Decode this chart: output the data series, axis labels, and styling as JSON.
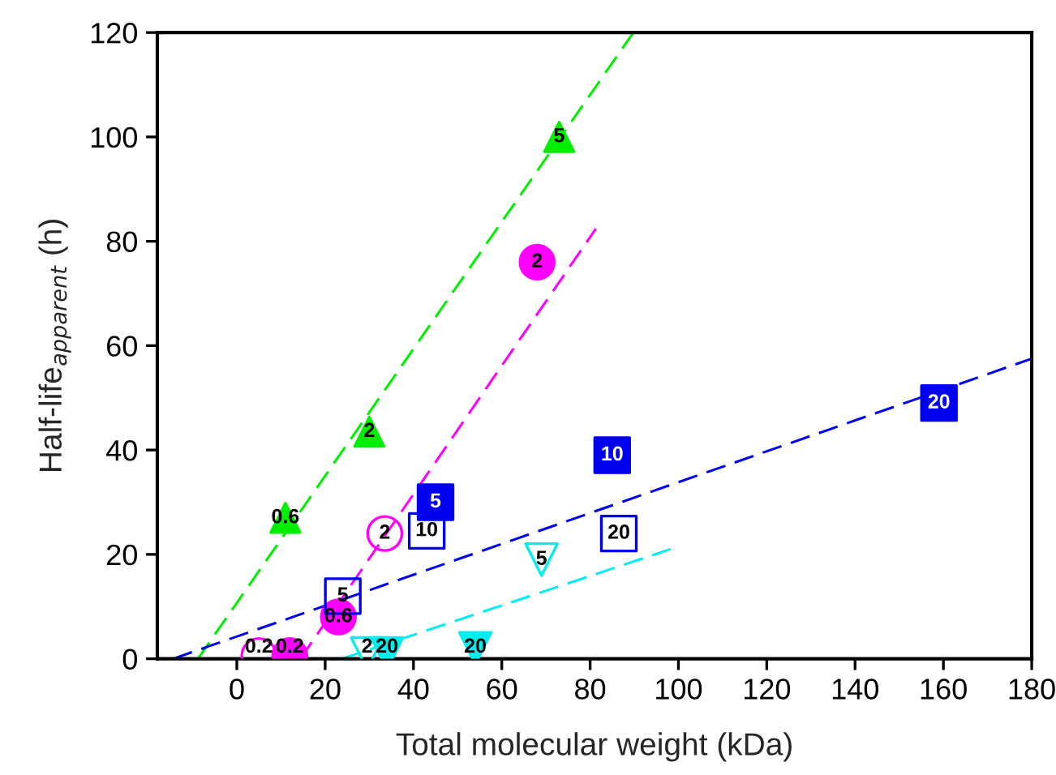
{
  "chart_data": {
    "type": "scatter",
    "xlabel": "Total molecular weight (kDa)",
    "ylabel": "Half-life$_{apparent}$ (h)",
    "xlim": [
      -18,
      180
    ],
    "xticks": [
      0,
      20,
      40,
      60,
      80,
      100,
      120,
      140,
      160,
      180
    ],
    "ylim": [
      0,
      120
    ],
    "yticks": [
      0,
      20,
      40,
      60,
      80,
      100,
      120
    ],
    "grid": false,
    "legend": false,
    "series": [
      {
        "type": "line",
        "color": "#00ee00",
        "line_style": "dashed",
        "marker": "none",
        "x": [
          -8.8,
          89.8
        ],
        "values": [
          0,
          120
        ]
      },
      {
        "type": "line",
        "color": "#ff00ff",
        "line_style": "dashed",
        "marker": "none",
        "x": [
          14.4,
          81.3
        ],
        "values": [
          0,
          82.4
        ]
      },
      {
        "type": "line",
        "color": "#0000ee",
        "line_style": "dashed",
        "marker": "none",
        "x": [
          -14.4,
          180
        ],
        "values": [
          0,
          57.5
        ]
      },
      {
        "type": "line",
        "color": "#00eeee",
        "line_style": "dashed",
        "marker": "none",
        "x": [
          23.8,
          98.2
        ],
        "values": [
          0,
          21
        ]
      },
      {
        "color": "#00ee00",
        "marker": "triangle",
        "x": [
          11,
          30,
          73
        ],
        "values": [
          27,
          43.5,
          100
        ]
      },
      {
        "color": "#ff00ff",
        "marker": "circle",
        "x": [
          12,
          23,
          68
        ],
        "values": [
          0.6,
          8,
          76
        ]
      },
      {
        "color": "#ff00ff",
        "marker": "circle-open",
        "x": [
          5,
          33.5
        ],
        "values": [
          0.6,
          24
        ]
      },
      {
        "color": "#0000ee",
        "marker": "square",
        "x": [
          45,
          85,
          159
        ],
        "values": [
          30,
          39,
          49
        ]
      },
      {
        "color": "#0000ee",
        "marker": "square-open",
        "x": [
          24,
          43,
          86.5
        ],
        "values": [
          12,
          24.5,
          24
        ]
      },
      {
        "color": "#00eeee",
        "marker": "triangle-down-open",
        "x": [
          29.5,
          69
        ],
        "values": [
          1,
          19
        ]
      },
      {
        "color": "#00eeee",
        "marker": "triangle-down",
        "x": [
          34,
          54
        ],
        "values": [
          1,
          2
        ]
      }
    ],
    "annotations": [
      {
        "text": "0.6",
        "x": 11,
        "y": 27
      },
      {
        "text": "2",
        "x": 30,
        "y": 43.5
      },
      {
        "text": "5",
        "x": 73,
        "y": 100
      },
      {
        "text": "0.2",
        "x": 12,
        "y": 0.6
      },
      {
        "text": "0.6",
        "x": 23,
        "y": 8
      },
      {
        "text": "2",
        "x": 68,
        "y": 76
      },
      {
        "text": "0.2",
        "x": 5,
        "y": 0.6
      },
      {
        "text": "2",
        "x": 33.5,
        "y": 24
      },
      {
        "text": "5",
        "x": 45,
        "y": 30
      },
      {
        "text": "10",
        "x": 85,
        "y": 39
      },
      {
        "text": "20",
        "x": 159,
        "y": 49
      },
      {
        "text": "5",
        "x": 24,
        "y": 12
      },
      {
        "text": "10",
        "x": 43,
        "y": 24.5
      },
      {
        "text": "20",
        "x": 86.5,
        "y": 24
      },
      {
        "text": "2",
        "x": 29.5,
        "y": 1
      },
      {
        "text": "5",
        "x": 69,
        "y": 19
      },
      {
        "text": "20",
        "x": 34,
        "y": 1
      },
      {
        "text": "20",
        "x": 54,
        "y": 2
      }
    ]
  }
}
